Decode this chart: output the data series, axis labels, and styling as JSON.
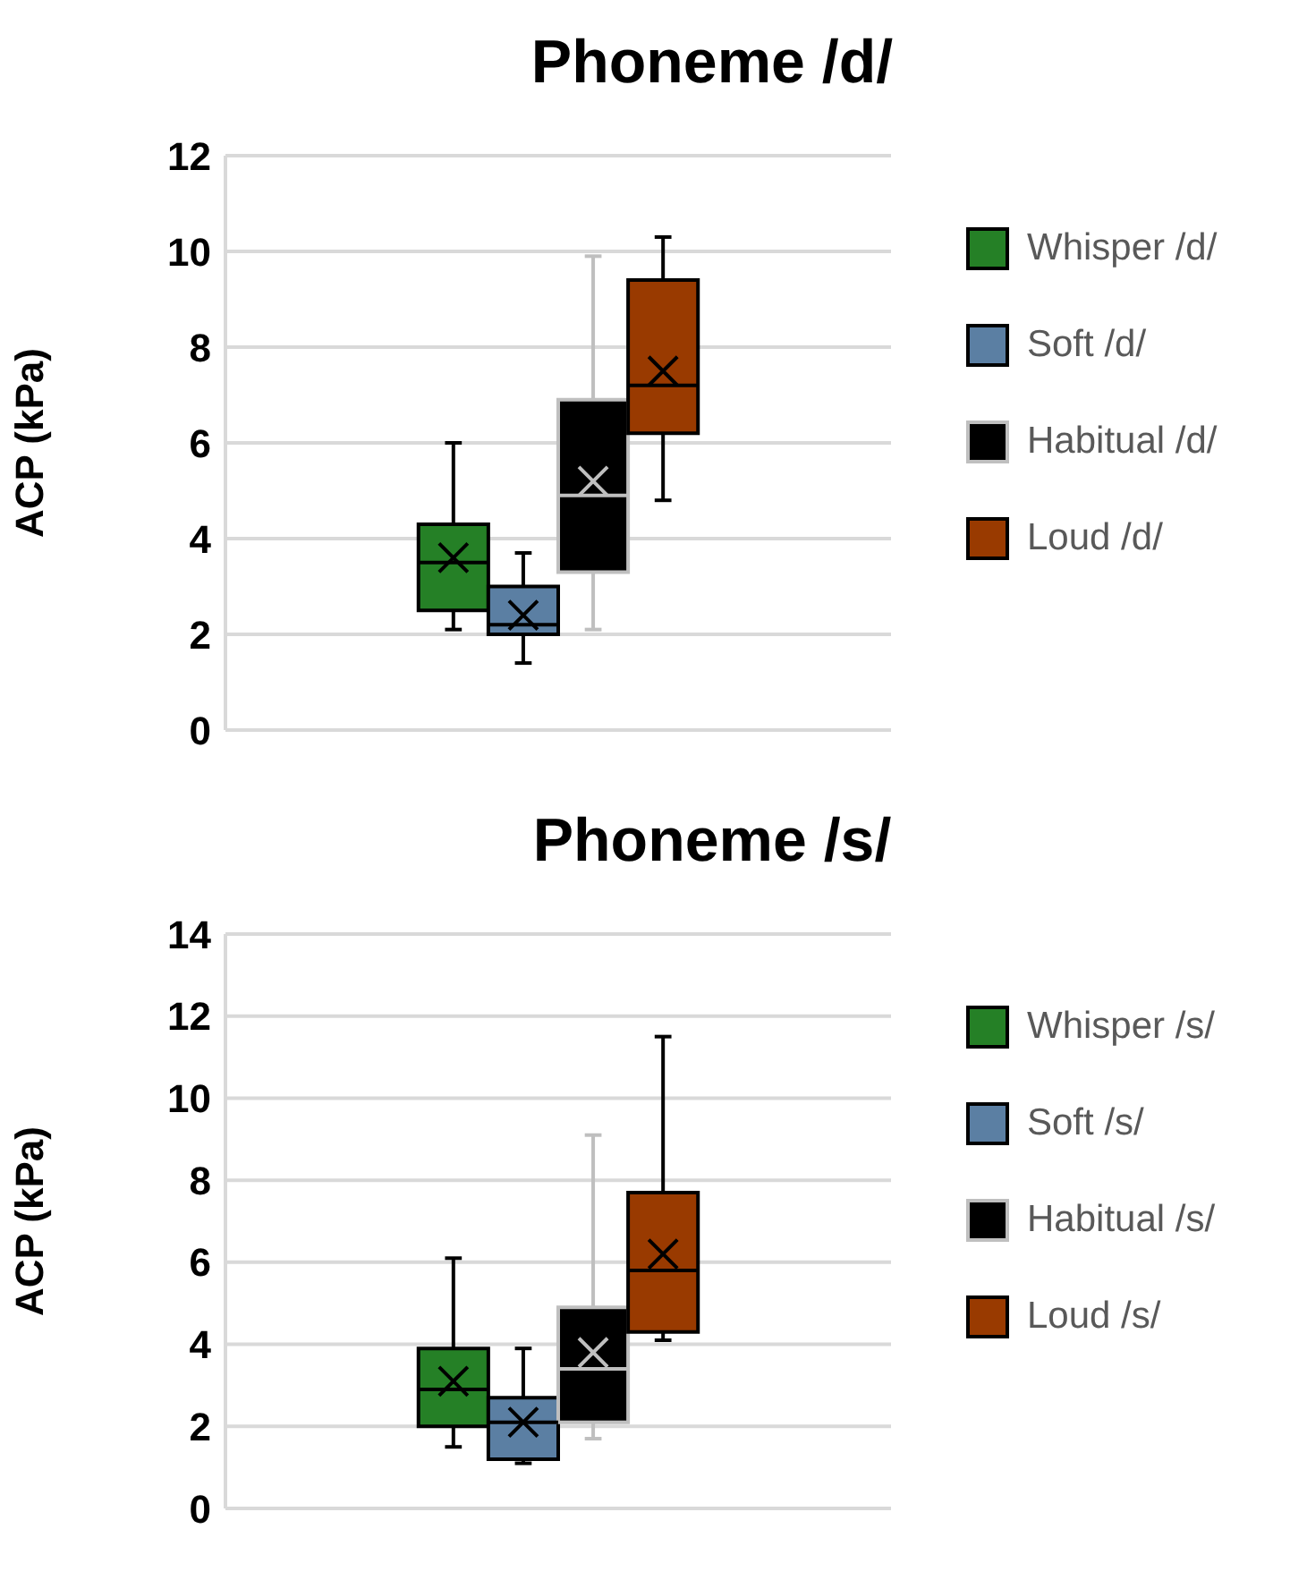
{
  "chart_data": [
    {
      "type": "box",
      "title": "Phoneme /d/",
      "ylabel": "ACP (kPa)",
      "categories": [
        null
      ],
      "ylim": [
        0,
        12
      ],
      "yticks": [
        0,
        2,
        4,
        6,
        8,
        10,
        12
      ],
      "grid": "y",
      "legend": "right",
      "series": [
        {
          "name": "Whisper /d/",
          "color": "#258026",
          "boxes": [
            {
              "low": 2.1,
              "q1": 2.5,
              "median": 3.5,
              "q3": 4.3,
              "high": 6.0,
              "mean": 3.6
            }
          ]
        },
        {
          "name": "Soft /d/",
          "color": "#5b7fa3",
          "boxes": [
            {
              "low": 1.4,
              "q1": 2.0,
              "median": 2.2,
              "q3": 3.0,
              "high": 3.7,
              "mean": 2.4
            }
          ]
        },
        {
          "name": "Habitual /d/",
          "color": "#000000",
          "boxes": [
            {
              "low": 2.1,
              "q1": 3.3,
              "median": 4.9,
              "q3": 6.9,
              "high": 9.9,
              "mean": 5.2
            }
          ]
        },
        {
          "name": "Loud /d/",
          "color": "#993a00",
          "boxes": [
            {
              "low": 4.8,
              "q1": 6.2,
              "median": 7.2,
              "q3": 9.4,
              "high": 10.3,
              "mean": 7.5
            }
          ]
        }
      ]
    },
    {
      "type": "box",
      "title": "Phoneme /s/",
      "ylabel": "ACP (kPa)",
      "categories": [
        null
      ],
      "ylim": [
        0,
        14
      ],
      "yticks": [
        0,
        2,
        4,
        6,
        8,
        10,
        12,
        14
      ],
      "grid": "y",
      "legend": "right",
      "series": [
        {
          "name": "Whisper /s/",
          "color": "#258026",
          "boxes": [
            {
              "low": 1.5,
              "q1": 2.0,
              "median": 2.9,
              "q3": 3.9,
              "high": 6.1,
              "mean": 3.1
            }
          ]
        },
        {
          "name": "Soft /s/",
          "color": "#5b7fa3",
          "boxes": [
            {
              "low": 1.1,
              "q1": 1.2,
              "median": 2.1,
              "q3": 2.7,
              "high": 3.9,
              "mean": 2.1
            }
          ]
        },
        {
          "name": "Habitual /s/",
          "color": "#000000",
          "boxes": [
            {
              "low": 1.7,
              "q1": 2.1,
              "median": 3.4,
              "q3": 4.9,
              "high": 9.1,
              "mean": 3.8
            }
          ]
        },
        {
          "name": "Loud /s/",
          "color": "#993a00",
          "boxes": [
            {
              "low": 4.1,
              "q1": 4.3,
              "median": 5.8,
              "q3": 7.7,
              "high": 11.5,
              "mean": 6.2
            }
          ]
        }
      ]
    }
  ]
}
